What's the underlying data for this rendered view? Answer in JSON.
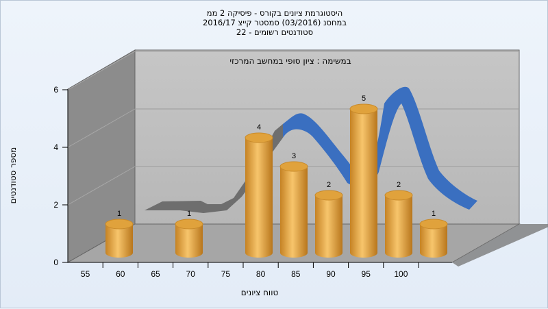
{
  "chart_data": {
    "type": "bar",
    "title_lines": [
      "היסטוגרמת ציונים בקורס - פיסיקה 2 ממ",
      "במחסנ  (03/2016)  סמסטר קייצ 2016/17",
      "סטודנטים רשומים - 22"
    ],
    "subtitle": "במשימה : ציון סופי במחשב המרכזי",
    "xlabel": "טווח ציונים",
    "ylabel": "מספר סטודנטים",
    "ylim": [
      0,
      6
    ],
    "yticks": [
      "0",
      "2",
      "4",
      "6"
    ],
    "xticks": [
      "55",
      "60",
      "65",
      "70",
      "75",
      "80",
      "85",
      "90",
      "95",
      "100"
    ],
    "categories": [
      "55",
      "65",
      "75-80",
      "80-85",
      "85-90",
      "90-95",
      "95-100",
      "100"
    ],
    "values": [
      1,
      1,
      4,
      3,
      2,
      5,
      2,
      1
    ],
    "colors": {
      "bar": "#e8a840",
      "curve": "#3a6fc0",
      "curve_shadow": "#6f6f6f",
      "back_wall": "#bdbdbd",
      "side_wall": "#8a8a8a",
      "floor": "#a9a9a9"
    }
  }
}
